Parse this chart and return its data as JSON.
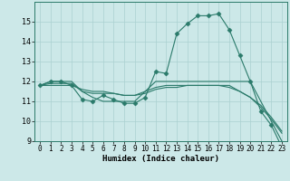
{
  "xlabel": "Humidex (Indice chaleur)",
  "background_color": "#cce8e8",
  "grid_color": "#aad0d0",
  "line_color": "#2a7a6a",
  "series": [
    {
      "x": [
        0,
        1,
        2,
        3,
        4,
        5,
        6,
        7,
        8,
        9,
        10,
        11,
        12,
        13,
        14,
        15,
        16,
        17,
        18,
        19,
        20,
        21,
        22,
        23
      ],
      "y": [
        11.8,
        12.0,
        12.0,
        11.8,
        11.1,
        11.0,
        11.3,
        11.1,
        10.9,
        10.9,
        11.2,
        12.5,
        12.4,
        14.4,
        14.9,
        15.3,
        15.3,
        15.4,
        14.6,
        13.3,
        12.0,
        10.5,
        9.8,
        8.7
      ],
      "markers": true
    },
    {
      "x": [
        0,
        1,
        2,
        3,
        4,
        5,
        6,
        7,
        8,
        9,
        10,
        11,
        12,
        16,
        17,
        18,
        19,
        20,
        21,
        22,
        23
      ],
      "y": [
        11.8,
        12.0,
        12.0,
        12.0,
        11.5,
        11.2,
        11.0,
        11.0,
        11.0,
        11.0,
        11.5,
        12.0,
        12.0,
        12.0,
        12.0,
        12.0,
        12.0,
        12.0,
        11.0,
        10.0,
        9.0
      ],
      "markers": false
    },
    {
      "x": [
        0,
        1,
        2,
        3,
        4,
        5,
        6,
        7,
        8,
        9,
        10,
        11,
        12,
        13,
        14,
        15,
        16,
        17,
        18,
        19,
        20,
        21,
        22,
        23
      ],
      "y": [
        11.8,
        11.9,
        11.9,
        11.9,
        11.5,
        11.4,
        11.4,
        11.4,
        11.3,
        11.3,
        11.5,
        11.7,
        11.8,
        11.8,
        11.8,
        11.8,
        11.8,
        11.8,
        11.8,
        11.5,
        11.2,
        10.8,
        10.2,
        9.5
      ],
      "markers": false
    },
    {
      "x": [
        0,
        1,
        2,
        3,
        4,
        5,
        6,
        7,
        8,
        9,
        10,
        11,
        12,
        13,
        14,
        15,
        16,
        17,
        18,
        19,
        20,
        21,
        22,
        23
      ],
      "y": [
        11.8,
        11.8,
        11.8,
        11.8,
        11.6,
        11.5,
        11.5,
        11.4,
        11.3,
        11.3,
        11.4,
        11.6,
        11.7,
        11.7,
        11.8,
        11.8,
        11.8,
        11.8,
        11.7,
        11.5,
        11.2,
        10.7,
        10.1,
        9.4
      ],
      "markers": false
    }
  ],
  "ylim": [
    9,
    16
  ],
  "xlim": [
    -0.5,
    23.5
  ],
  "yticks": [
    9,
    10,
    11,
    12,
    13,
    14,
    15
  ],
  "xticks": [
    0,
    1,
    2,
    3,
    4,
    5,
    6,
    7,
    8,
    9,
    10,
    11,
    12,
    13,
    14,
    15,
    16,
    17,
    18,
    19,
    20,
    21,
    22,
    23
  ],
  "marker": "D",
  "markersize": 2.5,
  "linewidth": 0.8,
  "tick_fontsize": 5.5,
  "xlabel_fontsize": 6.5
}
